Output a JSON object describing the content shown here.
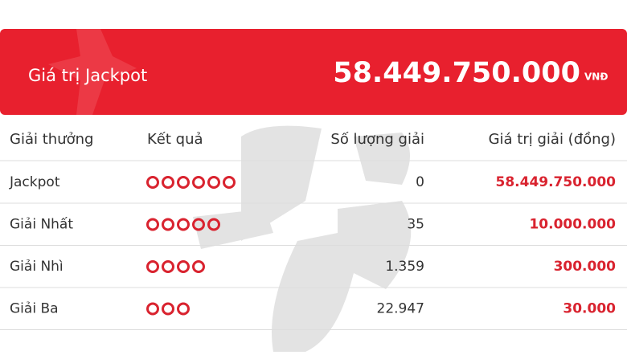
{
  "header": {
    "title": "Giá trị Jackpot",
    "amount": "58.449.750.000",
    "unit": "VNĐ"
  },
  "table": {
    "columns": [
      "Giải thưởng",
      "Kết quả",
      "Số lượng giải",
      "Giá trị giải (đồng)"
    ],
    "rows": [
      {
        "prize": "Jackpot",
        "matches": 6,
        "count": "0",
        "value": "58.449.750.000"
      },
      {
        "prize": "Giải Nhất",
        "matches": 5,
        "count": "35",
        "value": "10.000.000"
      },
      {
        "prize": "Giải Nhì",
        "matches": 4,
        "count": "1.359",
        "value": "300.000"
      },
      {
        "prize": "Giải Ba",
        "matches": 3,
        "count": "22.947",
        "value": "30.000"
      }
    ]
  }
}
